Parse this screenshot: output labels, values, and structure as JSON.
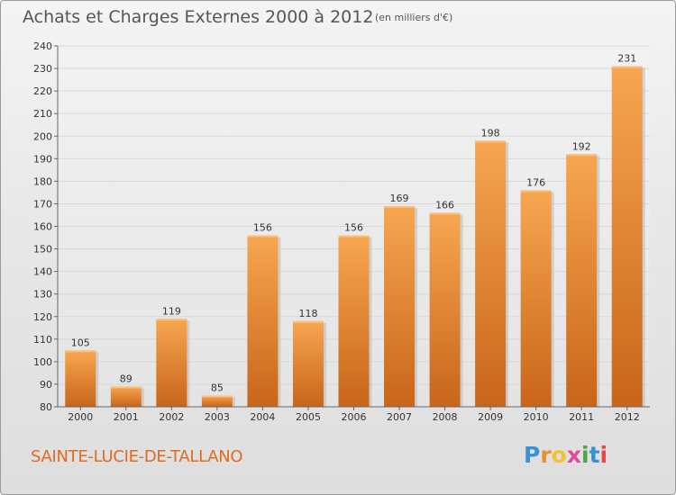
{
  "header": {
    "title": "Achats et Charges Externes 2000 à 2012",
    "unit": "(en milliers d'€)"
  },
  "footer": {
    "commune": "SAINTE-LUCIE-DE-TALLANO",
    "logo_text": "Proxiti"
  },
  "colors": {
    "bar_top": "#f7a650",
    "bar_bottom": "#c8651a",
    "commune_text": "#e06a20",
    "grid": "#d8d8d8"
  },
  "chart_data": {
    "type": "bar",
    "title": "Achats et Charges Externes 2000 à 2012",
    "subtitle": "(en milliers d'€)",
    "xlabel": "",
    "ylabel": "",
    "categories": [
      "2000",
      "2001",
      "2002",
      "2003",
      "2004",
      "2005",
      "2006",
      "2007",
      "2008",
      "2009",
      "2010",
      "2011",
      "2012"
    ],
    "values": [
      105,
      89,
      119,
      85,
      156,
      118,
      156,
      169,
      166,
      198,
      176,
      192,
      231
    ],
    "ylim": [
      80,
      240
    ],
    "yticks": [
      80,
      90,
      100,
      110,
      120,
      130,
      140,
      150,
      160,
      170,
      180,
      190,
      200,
      210,
      220,
      230,
      240
    ],
    "grid": true,
    "data_labels": true
  }
}
